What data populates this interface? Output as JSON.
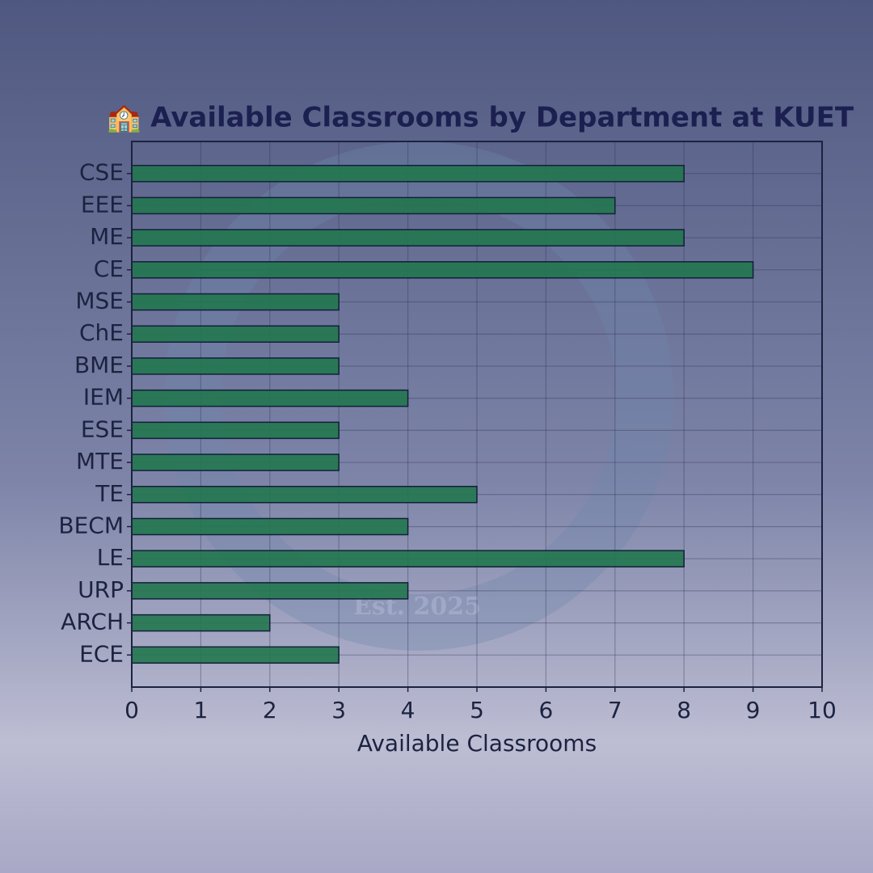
{
  "chart_data": {
    "type": "bar",
    "orientation": "horizontal",
    "title": "🏫 Available Classrooms by Department at KUET",
    "x_label": "Available Classrooms",
    "watermark": "Est. 2025",
    "categories": [
      "CSE",
      "EEE",
      "ME",
      "CE",
      "MSE",
      "ChE",
      "BME",
      "IEM",
      "ESE",
      "MTE",
      "TE",
      "BECM",
      "LE",
      "URP",
      "ARCH",
      "ECE"
    ],
    "values": [
      8,
      7,
      8,
      9,
      3,
      3,
      3,
      4,
      3,
      3,
      5,
      4,
      8,
      4,
      2,
      3
    ],
    "color": "#22774f",
    "xlim": [
      0,
      10
    ],
    "xticks": [
      0,
      1,
      2,
      3,
      4,
      5,
      6,
      7,
      8,
      9,
      10
    ],
    "grid": true
  }
}
